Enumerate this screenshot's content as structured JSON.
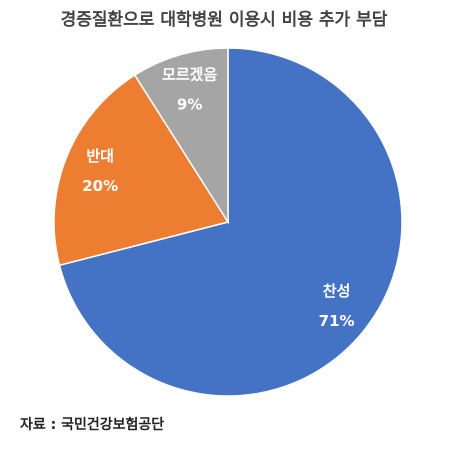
{
  "chart_data": {
    "type": "pie",
    "title": "경증질환으로 대학병원 이용시 비용 추가 부담",
    "categories": [
      "찬성",
      "반대",
      "모르겠음"
    ],
    "values": [
      71,
      20,
      9
    ],
    "value_labels": [
      "71%",
      "20%",
      "9%"
    ],
    "colors": [
      "#4472c4",
      "#ed7d31",
      "#a5a5a5"
    ],
    "source": "자료 : 국민건강보험공단"
  }
}
